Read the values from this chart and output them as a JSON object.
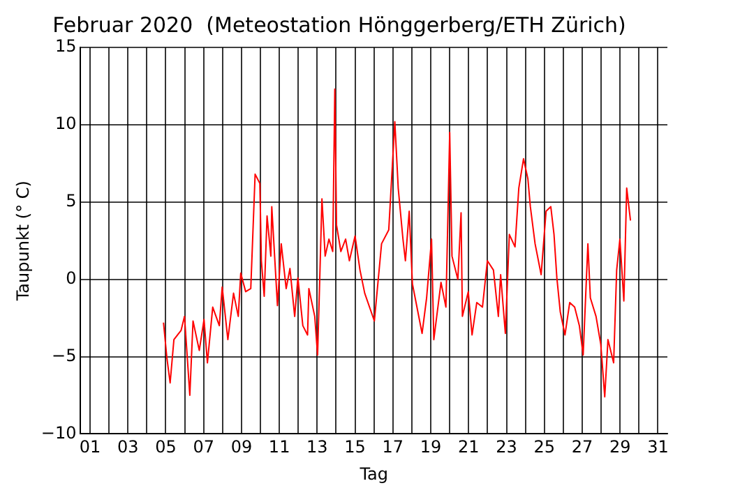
{
  "chart_data": {
    "type": "line",
    "title": "Februar 2020  (Meteostation Hönggerberg/ETH Zürich)",
    "xlabel": "Tag",
    "ylabel": "Taupunkt (° C)",
    "x": [
      4.88,
      5.06,
      5.23,
      5.43,
      5.81,
      5.99,
      6.27,
      6.44,
      6.77,
      7.02,
      7.2,
      7.48,
      7.83,
      7.98,
      8.28,
      8.58,
      8.83,
      8.96,
      9.22,
      9.49,
      9.72,
      9.97,
      10.05,
      10.2,
      10.35,
      10.55,
      10.6,
      10.9,
      11.1,
      11.36,
      11.56,
      11.81,
      11.98,
      12.24,
      12.49,
      12.56,
      12.87,
      13.02,
      13.12,
      13.25,
      13.42,
      13.62,
      13.82,
      13.93,
      14.02,
      14.25,
      14.5,
      14.7,
      15.0,
      15.26,
      15.51,
      16.02,
      16.4,
      16.78,
      17.1,
      17.28,
      17.53,
      17.66,
      17.86,
      18.03,
      18.54,
      18.78,
      19.04,
      19.16,
      19.54,
      19.8,
      20.0,
      20.12,
      20.43,
      20.6,
      20.67,
      20.98,
      21.18,
      21.43,
      21.73,
      21.99,
      22.31,
      22.57,
      22.69,
      22.94,
      23.15,
      23.45,
      23.65,
      23.9,
      24.13,
      24.26,
      24.51,
      24.83,
      25.09,
      25.34,
      25.51,
      25.66,
      25.84,
      26.09,
      26.34,
      26.6,
      26.85,
      27.05,
      27.3,
      27.43,
      27.73,
      27.98,
      28.19,
      28.36,
      28.66,
      28.82,
      28.99,
      29.2,
      29.35,
      29.55
    ],
    "series": [
      {
        "color": "#ff0000",
        "values": [
          -2.8,
          -5.1,
          -6.7,
          -3.9,
          -3.3,
          -2.4,
          -7.5,
          -2.7,
          -4.6,
          -2.6,
          -5.4,
          -1.8,
          -3.0,
          -0.5,
          -3.9,
          -0.9,
          -2.4,
          0.4,
          -0.8,
          -0.6,
          6.8,
          6.2,
          1.2,
          -1.1,
          4.1,
          1.5,
          4.7,
          -1.7,
          2.3,
          -0.6,
          0.7,
          -2.4,
          0.1,
          -3.0,
          -3.6,
          -0.6,
          -2.4,
          -4.9,
          -0.6,
          5.2,
          1.5,
          2.6,
          1.8,
          12.3,
          3.5,
          1.8,
          2.6,
          1.2,
          2.8,
          0.6,
          -0.9,
          -2.7,
          2.3,
          3.2,
          10.2,
          5.9,
          2.6,
          1.2,
          4.4,
          -0.3,
          -3.5,
          -1.2,
          2.6,
          -3.9,
          -0.2,
          -1.8,
          9.5,
          1.5,
          0,
          4.3,
          -2.4,
          -0.8,
          -3.6,
          -1.5,
          -1.8,
          1.2,
          0.6,
          -2.4,
          0.3,
          -3.5,
          2.9,
          2.1,
          5.9,
          7.8,
          6.5,
          4.7,
          2.3,
          0.3,
          4.4,
          4.7,
          2.9,
          0.1,
          -2.1,
          -3.6,
          -1.5,
          -1.8,
          -3.0,
          -4.9,
          2.3,
          -1.2,
          -2.4,
          -4.2,
          -7.6,
          -3.9,
          -5.4,
          0.6,
          2.6,
          -1.4,
          5.9,
          3.8
        ]
      }
    ],
    "xlim": [
      0.5,
      31.5
    ],
    "xticks": [
      {
        "value": 1,
        "label": "01"
      },
      {
        "value": 2,
        "label": null
      },
      {
        "value": 3,
        "label": "03"
      },
      {
        "value": 4,
        "label": null
      },
      {
        "value": 5,
        "label": "05"
      },
      {
        "value": 6,
        "label": null
      },
      {
        "value": 7,
        "label": "07"
      },
      {
        "value": 8,
        "label": null
      },
      {
        "value": 9,
        "label": "09"
      },
      {
        "value": 10,
        "label": null
      },
      {
        "value": 11,
        "label": "11"
      },
      {
        "value": 12,
        "label": null
      },
      {
        "value": 13,
        "label": "13"
      },
      {
        "value": 14,
        "label": null
      },
      {
        "value": 15,
        "label": "15"
      },
      {
        "value": 16,
        "label": null
      },
      {
        "value": 17,
        "label": "17"
      },
      {
        "value": 18,
        "label": null
      },
      {
        "value": 19,
        "label": "19"
      },
      {
        "value": 20,
        "label": null
      },
      {
        "value": 21,
        "label": "21"
      },
      {
        "value": 22,
        "label": null
      },
      {
        "value": 23,
        "label": "23"
      },
      {
        "value": 24,
        "label": null
      },
      {
        "value": 25,
        "label": "25"
      },
      {
        "value": 26,
        "label": null
      },
      {
        "value": 27,
        "label": "27"
      },
      {
        "value": 28,
        "label": null
      },
      {
        "value": 29,
        "label": "29"
      },
      {
        "value": 30,
        "label": null
      },
      {
        "value": 31,
        "label": "31"
      }
    ],
    "ylim": [
      -10,
      15
    ],
    "yticks": [
      {
        "value": -10,
        "label": "−10"
      },
      {
        "value": -5,
        "label": "−5"
      },
      0,
      5,
      10,
      15
    ],
    "grid": true,
    "marker": "none",
    "line_style": "solid"
  }
}
